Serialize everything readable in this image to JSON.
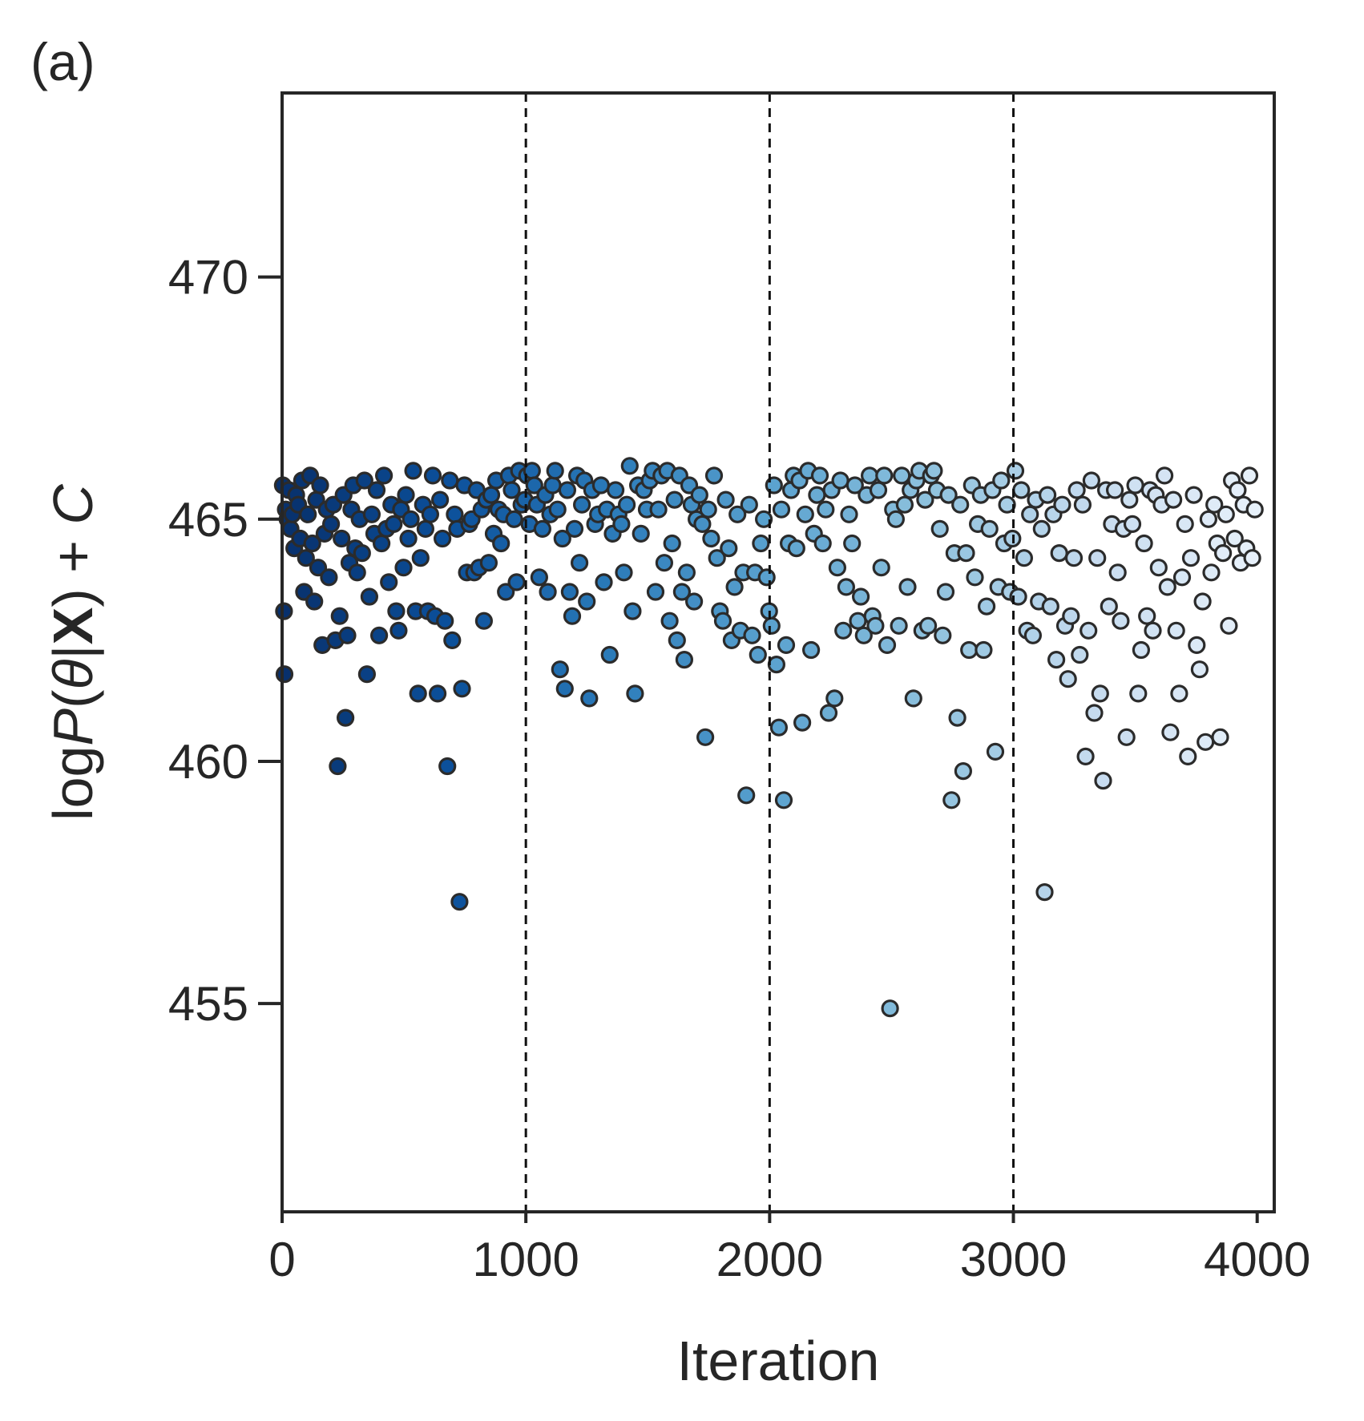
{
  "panel_label": "(a)",
  "chart_data": {
    "type": "scatter",
    "xlabel": "Iteration",
    "ylabel": {
      "prefix": "log",
      "italic_P": "P",
      "open": "(",
      "theta1": "θ",
      "bar": "|",
      "bold_X": "X",
      "close": ") + ",
      "italic_C": "C"
    },
    "xlim": [
      0,
      4070
    ],
    "ylim": [
      450.7,
      473.8
    ],
    "xticks": [
      0,
      1000,
      2000,
      3000,
      4000
    ],
    "xtick_labels": [
      "0",
      "1000",
      "2000",
      "3000",
      "4000"
    ],
    "yticks": [
      455,
      460,
      465,
      470
    ],
    "ytick_labels": [
      "455",
      "460",
      "465",
      "470"
    ],
    "vlines": [
      1000,
      2000,
      3000
    ],
    "grid": false,
    "color_gradient": [
      "#08306b",
      "#0b4f9a",
      "#2a7ab9",
      "#5aa2cf",
      "#8fc2de",
      "#c6dbef",
      "#e8f1fa"
    ],
    "points": [
      [
        3,
        465.7
      ],
      [
        8,
        463.1
      ],
      [
        10,
        461.8
      ],
      [
        15,
        465.2
      ],
      [
        22,
        465.0
      ],
      [
        28,
        465.6
      ],
      [
        35,
        464.8
      ],
      [
        42,
        465.1
      ],
      [
        50,
        464.4
      ],
      [
        58,
        465.5
      ],
      [
        66,
        465.3
      ],
      [
        74,
        464.6
      ],
      [
        82,
        465.8
      ],
      [
        90,
        463.5
      ],
      [
        98,
        464.2
      ],
      [
        106,
        465.1
      ],
      [
        115,
        465.9
      ],
      [
        124,
        464.5
      ],
      [
        132,
        463.3
      ],
      [
        140,
        465.4
      ],
      [
        148,
        464.0
      ],
      [
        156,
        465.7
      ],
      [
        165,
        462.4
      ],
      [
        174,
        464.7
      ],
      [
        183,
        465.2
      ],
      [
        192,
        463.8
      ],
      [
        201,
        464.9
      ],
      [
        210,
        465.3
      ],
      [
        219,
        462.5
      ],
      [
        228,
        459.9
      ],
      [
        236,
        463.0
      ],
      [
        244,
        464.6
      ],
      [
        252,
        465.5
      ],
      [
        260,
        460.9
      ],
      [
        268,
        462.6
      ],
      [
        276,
        464.1
      ],
      [
        284,
        465.2
      ],
      [
        292,
        465.7
      ],
      [
        300,
        464.4
      ],
      [
        308,
        463.9
      ],
      [
        318,
        465.0
      ],
      [
        328,
        464.3
      ],
      [
        338,
        465.8
      ],
      [
        348,
        461.8
      ],
      [
        358,
        463.4
      ],
      [
        368,
        465.1
      ],
      [
        378,
        464.7
      ],
      [
        388,
        465.6
      ],
      [
        398,
        462.6
      ],
      [
        408,
        464.5
      ],
      [
        418,
        465.9
      ],
      [
        428,
        464.8
      ],
      [
        438,
        463.7
      ],
      [
        448,
        465.3
      ],
      [
        458,
        464.9
      ],
      [
        468,
        463.1
      ],
      [
        478,
        462.7
      ],
      [
        488,
        465.2
      ],
      [
        498,
        464.0
      ],
      [
        508,
        465.5
      ],
      [
        518,
        464.6
      ],
      [
        528,
        465.0
      ],
      [
        538,
        466.0
      ],
      [
        548,
        463.1
      ],
      [
        558,
        461.4
      ],
      [
        568,
        464.2
      ],
      [
        578,
        465.3
      ],
      [
        588,
        464.8
      ],
      [
        598,
        463.1
      ],
      [
        608,
        465.1
      ],
      [
        618,
        465.9
      ],
      [
        628,
        463.0
      ],
      [
        638,
        461.4
      ],
      [
        648,
        465.4
      ],
      [
        658,
        464.6
      ],
      [
        668,
        462.9
      ],
      [
        678,
        459.9
      ],
      [
        688,
        465.8
      ],
      [
        698,
        462.5
      ],
      [
        708,
        465.1
      ],
      [
        718,
        464.8
      ],
      [
        728,
        457.1
      ],
      [
        738,
        461.5
      ],
      [
        748,
        465.7
      ],
      [
        758,
        463.9
      ],
      [
        768,
        464.9
      ],
      [
        778,
        465.0
      ],
      [
        788,
        463.9
      ],
      [
        798,
        465.6
      ],
      [
        808,
        464.0
      ],
      [
        818,
        465.2
      ],
      [
        828,
        462.9
      ],
      [
        838,
        465.4
      ],
      [
        848,
        464.1
      ],
      [
        858,
        465.5
      ],
      [
        868,
        464.7
      ],
      [
        878,
        465.8
      ],
      [
        888,
        465.2
      ],
      [
        898,
        464.5
      ],
      [
        908,
        465.1
      ],
      [
        918,
        463.5
      ],
      [
        930,
        465.9
      ],
      [
        942,
        465.6
      ],
      [
        952,
        465.0
      ],
      [
        962,
        463.7
      ],
      [
        972,
        466.0
      ],
      [
        982,
        465.3
      ],
      [
        995,
        465.4
      ],
      [
        1005,
        465.9
      ],
      [
        1015,
        464.9
      ],
      [
        1025,
        466.0
      ],
      [
        1035,
        465.7
      ],
      [
        1045,
        465.3
      ],
      [
        1055,
        463.8
      ],
      [
        1068,
        464.8
      ],
      [
        1080,
        465.5
      ],
      [
        1090,
        463.5
      ],
      [
        1100,
        465.1
      ],
      [
        1110,
        465.7
      ],
      [
        1120,
        466.0
      ],
      [
        1130,
        465.2
      ],
      [
        1140,
        461.9
      ],
      [
        1150,
        464.6
      ],
      [
        1160,
        461.5
      ],
      [
        1170,
        465.6
      ],
      [
        1180,
        463.5
      ],
      [
        1190,
        463.0
      ],
      [
        1200,
        464.8
      ],
      [
        1210,
        465.9
      ],
      [
        1220,
        464.1
      ],
      [
        1230,
        465.3
      ],
      [
        1240,
        465.8
      ],
      [
        1250,
        463.3
      ],
      [
        1260,
        461.3
      ],
      [
        1272,
        465.6
      ],
      [
        1284,
        464.9
      ],
      [
        1296,
        465.1
      ],
      [
        1308,
        465.7
      ],
      [
        1320,
        463.7
      ],
      [
        1332,
        465.2
      ],
      [
        1344,
        462.2
      ],
      [
        1356,
        464.7
      ],
      [
        1368,
        465.6
      ],
      [
        1380,
        465.1
      ],
      [
        1392,
        464.9
      ],
      [
        1402,
        463.9
      ],
      [
        1414,
        465.3
      ],
      [
        1426,
        466.1
      ],
      [
        1438,
        463.1
      ],
      [
        1448,
        461.4
      ],
      [
        1460,
        465.7
      ],
      [
        1472,
        464.7
      ],
      [
        1484,
        465.6
      ],
      [
        1496,
        465.2
      ],
      [
        1508,
        465.8
      ],
      [
        1520,
        466.0
      ],
      [
        1532,
        463.5
      ],
      [
        1544,
        465.2
      ],
      [
        1556,
        465.9
      ],
      [
        1568,
        464.1
      ],
      [
        1580,
        466.0
      ],
      [
        1590,
        462.9
      ],
      [
        1600,
        464.5
      ],
      [
        1610,
        465.4
      ],
      [
        1620,
        462.5
      ],
      [
        1630,
        465.9
      ],
      [
        1640,
        463.5
      ],
      [
        1650,
        462.1
      ],
      [
        1660,
        463.9
      ],
      [
        1670,
        465.7
      ],
      [
        1680,
        465.3
      ],
      [
        1690,
        463.3
      ],
      [
        1700,
        465.0
      ],
      [
        1712,
        465.5
      ],
      [
        1724,
        464.9
      ],
      [
        1736,
        460.5
      ],
      [
        1748,
        465.2
      ],
      [
        1760,
        464.6
      ],
      [
        1772,
        465.9
      ],
      [
        1784,
        464.2
      ],
      [
        1796,
        463.1
      ],
      [
        1808,
        462.9
      ],
      [
        1820,
        465.4
      ],
      [
        1832,
        464.4
      ],
      [
        1844,
        462.5
      ],
      [
        1856,
        463.6
      ],
      [
        1868,
        465.1
      ],
      [
        1880,
        462.7
      ],
      [
        1892,
        463.9
      ],
      [
        1904,
        459.3
      ],
      [
        1916,
        465.3
      ],
      [
        1928,
        462.6
      ],
      [
        1940,
        463.9
      ],
      [
        1952,
        462.2
      ],
      [
        1964,
        464.5
      ],
      [
        1976,
        465.0
      ],
      [
        1988,
        463.8
      ],
      [
        1998,
        463.1
      ],
      [
        2008,
        462.8
      ],
      [
        2018,
        465.7
      ],
      [
        2028,
        462.0
      ],
      [
        2038,
        460.7
      ],
      [
        2048,
        465.2
      ],
      [
        2058,
        459.2
      ],
      [
        2068,
        462.4
      ],
      [
        2078,
        464.5
      ],
      [
        2088,
        465.6
      ],
      [
        2098,
        465.9
      ],
      [
        2110,
        464.4
      ],
      [
        2122,
        465.8
      ],
      [
        2134,
        460.8
      ],
      [
        2146,
        465.1
      ],
      [
        2158,
        466.0
      ],
      [
        2170,
        462.3
      ],
      [
        2182,
        464.7
      ],
      [
        2194,
        465.5
      ],
      [
        2206,
        465.9
      ],
      [
        2218,
        464.5
      ],
      [
        2230,
        465.2
      ],
      [
        2242,
        461.0
      ],
      [
        2254,
        465.6
      ],
      [
        2266,
        461.3
      ],
      [
        2278,
        464.0
      ],
      [
        2290,
        465.8
      ],
      [
        2302,
        462.7
      ],
      [
        2314,
        463.6
      ],
      [
        2326,
        465.1
      ],
      [
        2338,
        464.5
      ],
      [
        2350,
        465.7
      ],
      [
        2362,
        462.9
      ],
      [
        2374,
        463.4
      ],
      [
        2386,
        462.6
      ],
      [
        2398,
        465.5
      ],
      [
        2410,
        465.9
      ],
      [
        2422,
        463.0
      ],
      [
        2434,
        462.8
      ],
      [
        2446,
        465.6
      ],
      [
        2458,
        464.0
      ],
      [
        2470,
        465.9
      ],
      [
        2482,
        462.4
      ],
      [
        2494,
        454.9
      ],
      [
        2506,
        465.2
      ],
      [
        2518,
        465.0
      ],
      [
        2530,
        462.8
      ],
      [
        2542,
        465.9
      ],
      [
        2554,
        465.3
      ],
      [
        2566,
        463.6
      ],
      [
        2578,
        465.6
      ],
      [
        2590,
        461.3
      ],
      [
        2602,
        465.8
      ],
      [
        2614,
        466.0
      ],
      [
        2626,
        462.7
      ],
      [
        2638,
        465.4
      ],
      [
        2650,
        462.8
      ],
      [
        2662,
        465.9
      ],
      [
        2674,
        466.0
      ],
      [
        2686,
        465.6
      ],
      [
        2698,
        464.8
      ],
      [
        2710,
        462.6
      ],
      [
        2722,
        463.5
      ],
      [
        2734,
        465.5
      ],
      [
        2746,
        459.2
      ],
      [
        2758,
        464.3
      ],
      [
        2770,
        460.9
      ],
      [
        2782,
        465.3
      ],
      [
        2794,
        459.8
      ],
      [
        2806,
        464.3
      ],
      [
        2818,
        462.3
      ],
      [
        2830,
        465.7
      ],
      [
        2842,
        463.8
      ],
      [
        2854,
        464.9
      ],
      [
        2866,
        465.5
      ],
      [
        2878,
        462.3
      ],
      [
        2890,
        463.2
      ],
      [
        2902,
        464.8
      ],
      [
        2914,
        465.6
      ],
      [
        2926,
        460.2
      ],
      [
        2938,
        463.6
      ],
      [
        2950,
        465.8
      ],
      [
        2962,
        464.5
      ],
      [
        2974,
        465.3
      ],
      [
        2986,
        463.5
      ],
      [
        2996,
        464.6
      ],
      [
        3008,
        466.0
      ],
      [
        3020,
        463.4
      ],
      [
        3032,
        465.6
      ],
      [
        3044,
        464.2
      ],
      [
        3056,
        462.7
      ],
      [
        3068,
        465.1
      ],
      [
        3080,
        462.6
      ],
      [
        3092,
        465.4
      ],
      [
        3104,
        463.3
      ],
      [
        3116,
        464.8
      ],
      [
        3128,
        457.3
      ],
      [
        3140,
        465.5
      ],
      [
        3152,
        463.2
      ],
      [
        3164,
        465.1
      ],
      [
        3176,
        462.1
      ],
      [
        3188,
        464.3
      ],
      [
        3200,
        465.3
      ],
      [
        3212,
        462.8
      ],
      [
        3224,
        461.7
      ],
      [
        3236,
        463.0
      ],
      [
        3248,
        464.2
      ],
      [
        3260,
        465.6
      ],
      [
        3272,
        462.2
      ],
      [
        3284,
        465.3
      ],
      [
        3296,
        460.1
      ],
      [
        3308,
        462.7
      ],
      [
        3320,
        465.8
      ],
      [
        3332,
        461.0
      ],
      [
        3344,
        464.2
      ],
      [
        3356,
        461.4
      ],
      [
        3368,
        459.6
      ],
      [
        3380,
        465.6
      ],
      [
        3392,
        463.2
      ],
      [
        3404,
        464.9
      ],
      [
        3416,
        465.6
      ],
      [
        3428,
        463.9
      ],
      [
        3440,
        462.9
      ],
      [
        3452,
        464.8
      ],
      [
        3464,
        460.5
      ],
      [
        3476,
        465.4
      ],
      [
        3488,
        464.9
      ],
      [
        3500,
        465.7
      ],
      [
        3512,
        461.4
      ],
      [
        3524,
        462.3
      ],
      [
        3536,
        464.5
      ],
      [
        3548,
        463.0
      ],
      [
        3560,
        465.6
      ],
      [
        3572,
        462.7
      ],
      [
        3584,
        465.5
      ],
      [
        3596,
        464.0
      ],
      [
        3608,
        465.3
      ],
      [
        3620,
        465.9
      ],
      [
        3632,
        463.6
      ],
      [
        3644,
        460.6
      ],
      [
        3656,
        465.4
      ],
      [
        3668,
        462.7
      ],
      [
        3680,
        461.4
      ],
      [
        3692,
        463.8
      ],
      [
        3704,
        464.9
      ],
      [
        3716,
        460.1
      ],
      [
        3728,
        464.2
      ],
      [
        3740,
        465.5
      ],
      [
        3752,
        462.4
      ],
      [
        3764,
        461.9
      ],
      [
        3776,
        463.3
      ],
      [
        3788,
        460.4
      ],
      [
        3800,
        465.0
      ],
      [
        3812,
        463.9
      ],
      [
        3824,
        465.3
      ],
      [
        3836,
        464.5
      ],
      [
        3848,
        460.5
      ],
      [
        3860,
        464.3
      ],
      [
        3872,
        465.1
      ],
      [
        3884,
        462.8
      ],
      [
        3896,
        465.8
      ],
      [
        3908,
        464.6
      ],
      [
        3920,
        465.6
      ],
      [
        3932,
        464.1
      ],
      [
        3944,
        465.3
      ],
      [
        3956,
        464.4
      ],
      [
        3968,
        465.9
      ],
      [
        3980,
        464.2
      ],
      [
        3990,
        465.2
      ]
    ]
  }
}
